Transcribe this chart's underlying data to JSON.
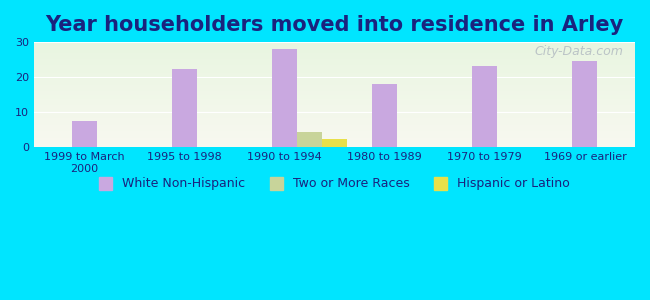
{
  "title": "Year householders moved into residence in Arley",
  "categories": [
    "1999 to March\n2000",
    "1995 to 1998",
    "1990 to 1994",
    "1980 to 1989",
    "1970 to 1979",
    "1969 or earlier"
  ],
  "series": {
    "White Non-Hispanic": [
      7.5,
      22.2,
      28.0,
      18.0,
      23.2,
      24.5
    ],
    "Two or More Races": [
      0,
      0,
      4.2,
      0,
      0,
      0
    ],
    "Hispanic or Latino": [
      0,
      0,
      2.2,
      0,
      0,
      0
    ]
  },
  "colors": {
    "White Non-Hispanic": "#c9a8e0",
    "Two or More Races": "#c8d49a",
    "Hispanic or Latino": "#e8e04a"
  },
  "ylim": [
    0,
    30
  ],
  "yticks": [
    0,
    10,
    20,
    30
  ],
  "background_outer": "#00e5ff",
  "grid_color": "#ffffff",
  "bar_width": 0.25,
  "title_fontsize": 15,
  "tick_fontsize": 8,
  "legend_fontsize": 9,
  "watermark": "City-Data.com"
}
